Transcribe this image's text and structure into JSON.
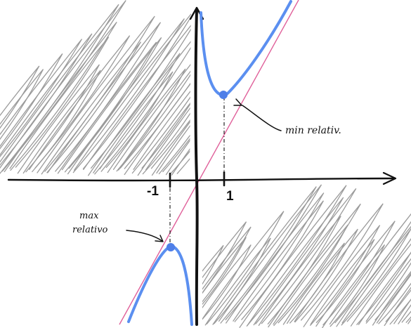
{
  "diagram": {
    "tick_labels": {
      "neg_one": "-1",
      "pos_one": "1"
    },
    "annotations": {
      "min_label": "min relativ.",
      "max_label_line1": "max",
      "max_label_line2": "relativo"
    },
    "points": {
      "relative_min": {
        "x": 1,
        "y": 2
      },
      "relative_max": {
        "x": -1,
        "y": -2
      }
    },
    "colors": {
      "curve": "#5b8ff0",
      "asymptote": "#e0609a",
      "axes": "#111111",
      "hatching": "#8a8a8a",
      "point": "#4f7fe8"
    }
  }
}
